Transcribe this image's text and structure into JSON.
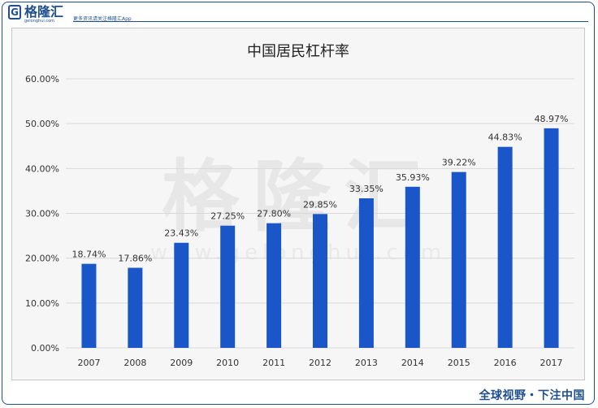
{
  "brand": {
    "logo_glyph": "G",
    "name": "格隆汇",
    "domain": "gelonghui.com",
    "slogan": "更多资讯请关注格隆汇App"
  },
  "footer": {
    "slogan": "全球视野・下注中国"
  },
  "watermark": {
    "text": "格隆汇",
    "domain": "www.gelonghui.com"
  },
  "colors": {
    "bar": "#1a56c8",
    "brand": "#1e4f8f",
    "grid": "#d9d9d9",
    "text": "#333333"
  },
  "chart_data": {
    "type": "bar",
    "title": "中国居民杠杆率",
    "xlabel": "",
    "ylabel": "",
    "categories": [
      "2007",
      "2008",
      "2009",
      "2010",
      "2011",
      "2012",
      "2013",
      "2014",
      "2015",
      "2016",
      "2017"
    ],
    "values": [
      18.74,
      17.86,
      23.43,
      27.25,
      27.8,
      29.85,
      33.35,
      35.93,
      39.22,
      44.83,
      48.97
    ],
    "data_labels": [
      "18.74%",
      "17.86%",
      "23.43%",
      "27.25%",
      "27.80%",
      "29.85%",
      "33.35%",
      "35.93%",
      "39.22%",
      "44.83%",
      "48.97%"
    ],
    "ylim": [
      0,
      60
    ],
    "yticks": [
      "0.00%",
      "10.00%",
      "20.00%",
      "30.00%",
      "40.00%",
      "50.00%",
      "60.00%"
    ],
    "grid": true,
    "legend": "none"
  }
}
